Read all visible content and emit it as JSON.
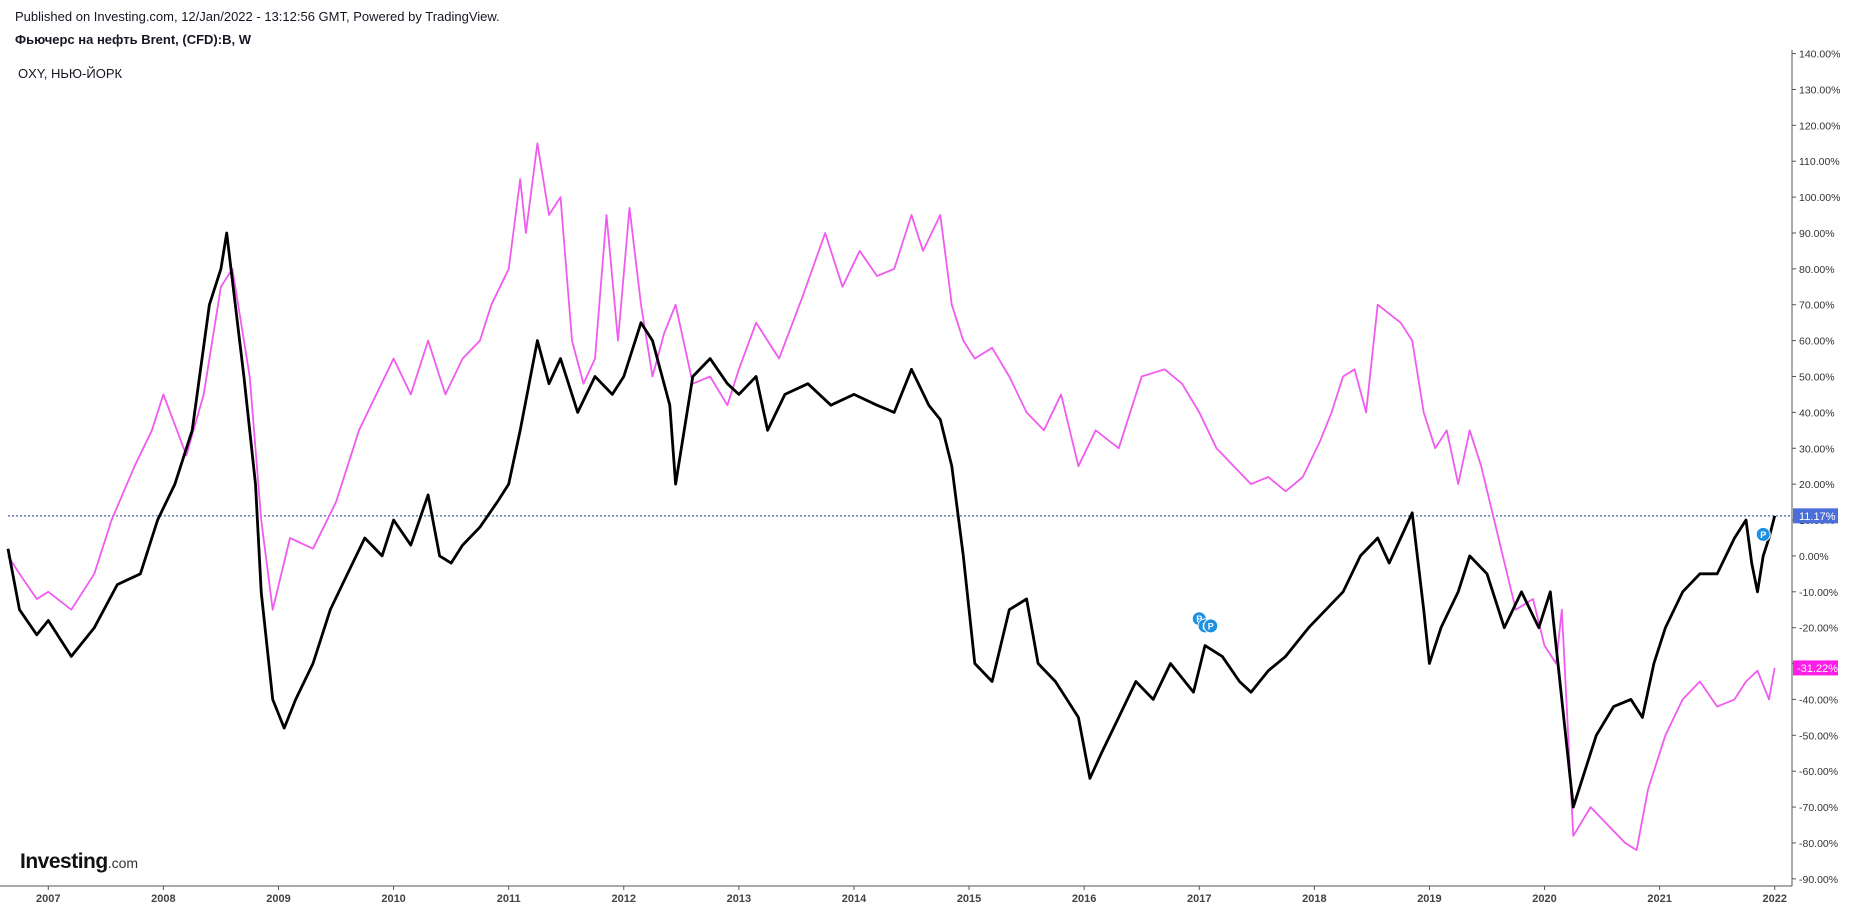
{
  "header": {
    "published": "Published on Investing.com, 12/Jan/2022 - 13:12:56 GMT, Powered by TradingView.",
    "symbol": "Фьючерс на нефть Brent, (CFD):B, W",
    "comparison": "OXY, НЬЮ-ЙОРК"
  },
  "logo": {
    "brand": "Investing",
    "suffix": ".com"
  },
  "colors": {
    "brent": "#000000",
    "oxy": "#f05bf0",
    "last_line": "#1e3f8a",
    "last_badge": "#4a6fd8",
    "oxy_badge": "#ff1ee8",
    "event_marker": "#1e90e0"
  },
  "chart_data": {
    "type": "line",
    "y_unit": "percent",
    "ylim": [
      -92,
      141
    ],
    "xlim": [
      2006.65,
      2022.15
    ],
    "y_ticks": [
      "140.00%",
      "130.00%",
      "120.00%",
      "110.00%",
      "100.00%",
      "90.00%",
      "80.00%",
      "70.00%",
      "60.00%",
      "50.00%",
      "40.00%",
      "30.00%",
      "20.00%",
      "10.00%",
      "0.00%",
      "-10.00%",
      "-20.00%",
      "-30.00%",
      "-40.00%",
      "-50.00%",
      "-60.00%",
      "-70.00%",
      "-80.00%",
      "-90.00%"
    ],
    "y_tick_values": [
      140,
      130,
      120,
      110,
      100,
      90,
      80,
      70,
      60,
      50,
      40,
      30,
      20,
      10,
      0,
      -10,
      -20,
      -30,
      -40,
      -50,
      -60,
      -70,
      -80,
      -90
    ],
    "x_ticks": [
      "2007",
      "2008",
      "2009",
      "2010",
      "2011",
      "2012",
      "2013",
      "2014",
      "2015",
      "2016",
      "2017",
      "2018",
      "2019",
      "2020",
      "2021",
      "2022"
    ],
    "x_tick_values": [
      2007,
      2008,
      2009,
      2010,
      2011,
      2012,
      2013,
      2014,
      2015,
      2016,
      2017,
      2018,
      2019,
      2020,
      2021,
      2022
    ],
    "grid": false,
    "series": [
      {
        "key": "brent",
        "x": [
          2006.65,
          2006.75,
          2006.9,
          2007.0,
          2007.2,
          2007.4,
          2007.6,
          2007.8,
          2007.95,
          2008.1,
          2008.25,
          2008.4,
          2008.5,
          2008.55,
          2008.7,
          2008.8,
          2008.85,
          2008.95,
          2009.05,
          2009.15,
          2009.3,
          2009.45,
          2009.6,
          2009.75,
          2009.9,
          2010.0,
          2010.15,
          2010.3,
          2010.4,
          2010.5,
          2010.6,
          2010.75,
          2010.9,
          2011.0,
          2011.1,
          2011.25,
          2011.35,
          2011.45,
          2011.6,
          2011.75,
          2011.9,
          2012.0,
          2012.15,
          2012.25,
          2012.4,
          2012.45,
          2012.6,
          2012.75,
          2012.9,
          2013.0,
          2013.15,
          2013.25,
          2013.4,
          2013.6,
          2013.8,
          2014.0,
          2014.2,
          2014.35,
          2014.5,
          2014.65,
          2014.75,
          2014.85,
          2014.95,
          2015.05,
          2015.2,
          2015.35,
          2015.5,
          2015.6,
          2015.75,
          2015.85,
          2015.95,
          2016.05,
          2016.15,
          2016.3,
          2016.45,
          2016.6,
          2016.75,
          2016.95,
          2017.05,
          2017.2,
          2017.35,
          2017.45,
          2017.6,
          2017.75,
          2017.95,
          2018.1,
          2018.25,
          2018.4,
          2018.55,
          2018.65,
          2018.75,
          2018.85,
          2018.95,
          2019.0,
          2019.1,
          2019.25,
          2019.35,
          2019.5,
          2019.65,
          2019.8,
          2019.95,
          2020.05,
          2020.15,
          2020.25,
          2020.35,
          2020.45,
          2020.6,
          2020.75,
          2020.85,
          2020.95,
          2021.05,
          2021.2,
          2021.35,
          2021.5,
          2021.65,
          2021.75,
          2021.8,
          2021.85,
          2021.9,
          2021.95,
          2022.0
        ],
        "y": [
          2,
          -15,
          -22,
          -18,
          -28,
          -20,
          -8,
          -5,
          10,
          20,
          35,
          70,
          80,
          90,
          50,
          20,
          -10,
          -40,
          -48,
          -40,
          -30,
          -15,
          -5,
          5,
          0,
          10,
          3,
          17,
          0,
          -2,
          3,
          8,
          15,
          20,
          35,
          60,
          48,
          55,
          40,
          50,
          45,
          50,
          65,
          60,
          42,
          20,
          50,
          55,
          48,
          45,
          50,
          35,
          45,
          48,
          42,
          45,
          42,
          40,
          52,
          42,
          38,
          25,
          0,
          -30,
          -35,
          -15,
          -12,
          -30,
          -35,
          -40,
          -45,
          -62,
          -55,
          -45,
          -35,
          -40,
          -30,
          -38,
          -25,
          -28,
          -35,
          -38,
          -32,
          -28,
          -20,
          -15,
          -10,
          0,
          5,
          -2,
          5,
          12,
          -15,
          -30,
          -20,
          -10,
          0,
          -5,
          -20,
          -10,
          -20,
          -10,
          -40,
          -70,
          -60,
          -50,
          -42,
          -40,
          -45,
          -30,
          -20,
          -10,
          -5,
          -5,
          5,
          10,
          -2,
          -10,
          0,
          5,
          11.17
        ]
      },
      {
        "key": "oxy",
        "x": [
          2006.65,
          2006.75,
          2006.9,
          2007.0,
          2007.2,
          2007.4,
          2007.55,
          2007.75,
          2007.9,
          2008.0,
          2008.2,
          2008.35,
          2008.5,
          2008.6,
          2008.75,
          2008.85,
          2008.95,
          2009.1,
          2009.3,
          2009.5,
          2009.7,
          2009.85,
          2010.0,
          2010.15,
          2010.3,
          2010.45,
          2010.6,
          2010.75,
          2010.85,
          2011.0,
          2011.1,
          2011.15,
          2011.25,
          2011.35,
          2011.45,
          2011.55,
          2011.65,
          2011.75,
          2011.85,
          2011.95,
          2012.05,
          2012.15,
          2012.25,
          2012.35,
          2012.45,
          2012.6,
          2012.75,
          2012.9,
          2013.0,
          2013.15,
          2013.35,
          2013.55,
          2013.75,
          2013.9,
          2014.05,
          2014.2,
          2014.35,
          2014.5,
          2014.6,
          2014.75,
          2014.85,
          2014.95,
          2015.05,
          2015.2,
          2015.35,
          2015.5,
          2015.65,
          2015.8,
          2015.95,
          2016.1,
          2016.3,
          2016.5,
          2016.7,
          2016.85,
          2017.0,
          2017.15,
          2017.3,
          2017.45,
          2017.6,
          2017.75,
          2017.9,
          2018.05,
          2018.15,
          2018.25,
          2018.35,
          2018.45,
          2018.55,
          2018.75,
          2018.85,
          2018.95,
          2019.05,
          2019.15,
          2019.25,
          2019.35,
          2019.45,
          2019.6,
          2019.75,
          2019.9,
          2020.0,
          2020.1,
          2020.15,
          2020.25,
          2020.4,
          2020.55,
          2020.7,
          2020.8,
          2020.9,
          2021.05,
          2021.2,
          2021.35,
          2021.5,
          2021.65,
          2021.75,
          2021.85,
          2021.95,
          2022.0
        ],
        "y": [
          0,
          -5,
          -12,
          -10,
          -15,
          -5,
          10,
          25,
          35,
          45,
          28,
          45,
          75,
          80,
          50,
          10,
          -15,
          5,
          2,
          15,
          35,
          45,
          55,
          45,
          60,
          45,
          55,
          60,
          70,
          80,
          105,
          90,
          115,
          95,
          100,
          60,
          48,
          55,
          95,
          60,
          97,
          70,
          50,
          62,
          70,
          48,
          50,
          42,
          52,
          65,
          55,
          72,
          90,
          75,
          85,
          78,
          80,
          95,
          85,
          95,
          70,
          60,
          55,
          58,
          50,
          40,
          35,
          45,
          25,
          35,
          30,
          50,
          52,
          48,
          40,
          30,
          25,
          20,
          22,
          18,
          22,
          32,
          40,
          50,
          52,
          40,
          70,
          65,
          60,
          40,
          30,
          35,
          20,
          35,
          25,
          5,
          -15,
          -12,
          -25,
          -30,
          -15,
          -78,
          -70,
          -75,
          -80,
          -82,
          -65,
          -50,
          -40,
          -35,
          -42,
          -40,
          -35,
          -32,
          -40,
          -31.22
        ]
      }
    ],
    "last_values": {
      "brent": "11.17%",
      "oxy": "-31.22%"
    },
    "event_markers": [
      {
        "label": "P",
        "x": 2017.0,
        "y": -17.5
      },
      {
        "label": "F",
        "x": 2017.05,
        "y": -19.5
      },
      {
        "label": "P",
        "x": 2017.1,
        "y": -19.5
      },
      {
        "label": "P",
        "x": 2021.9,
        "y": 6
      }
    ]
  }
}
